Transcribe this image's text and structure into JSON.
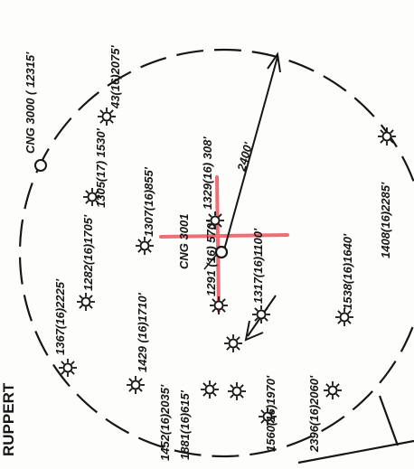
{
  "map": {
    "title": "RUPPERT",
    "radius_label": "2400'",
    "center_well": {
      "name": "CNG 3001"
    },
    "wells": [
      {
        "id": "cng-3000",
        "label": "CNG 3000 ( 12315'",
        "symbol": "open-circle"
      },
      {
        "id": "w43",
        "label": "43(16)2075'",
        "symbol": "gas-well"
      },
      {
        "id": "w1329",
        "label": "1329(16) 308'",
        "symbol": "gas-well"
      },
      {
        "id": "w1305",
        "label": "1305(17) 1530'",
        "symbol": "gas-well"
      },
      {
        "id": "w1307",
        "label": "1307(16)855'",
        "symbol": "gas-well"
      },
      {
        "id": "w1282",
        "label": "1282(16)1705'",
        "symbol": "gas-well"
      },
      {
        "id": "w1367",
        "label": "1367(16)2225'",
        "symbol": "gas-well"
      },
      {
        "id": "w1317",
        "label": "1317(16)1100'",
        "symbol": "gas-well"
      },
      {
        "id": "w1291",
        "label": "1291 (16) 570'",
        "symbol": "gas-well"
      },
      {
        "id": "w1408",
        "label": "1408(16)2285'",
        "symbol": "gas-well"
      },
      {
        "id": "w1538",
        "label": "1538(16)1640'",
        "symbol": "gas-well"
      },
      {
        "id": "w1429",
        "label": "1429 (16)1710'",
        "symbol": "gas-well"
      },
      {
        "id": "w1452",
        "label": "1452(16)2035'",
        "symbol": "gas-well"
      },
      {
        "id": "w1881",
        "label": "1881(16)615'",
        "symbol": "gas-well"
      },
      {
        "id": "w1560",
        "label": "1560(16)1970'",
        "symbol": "gas-well"
      },
      {
        "id": "w2396",
        "label": "2396(16)2060'",
        "symbol": "gas-well"
      },
      {
        "id": "w-unlabeled",
        "label": "",
        "symbol": "gas-well"
      }
    ],
    "colors": {
      "ink": "#161616",
      "crosshair": "#ec6f76",
      "paper": "#fdfdfb"
    }
  }
}
